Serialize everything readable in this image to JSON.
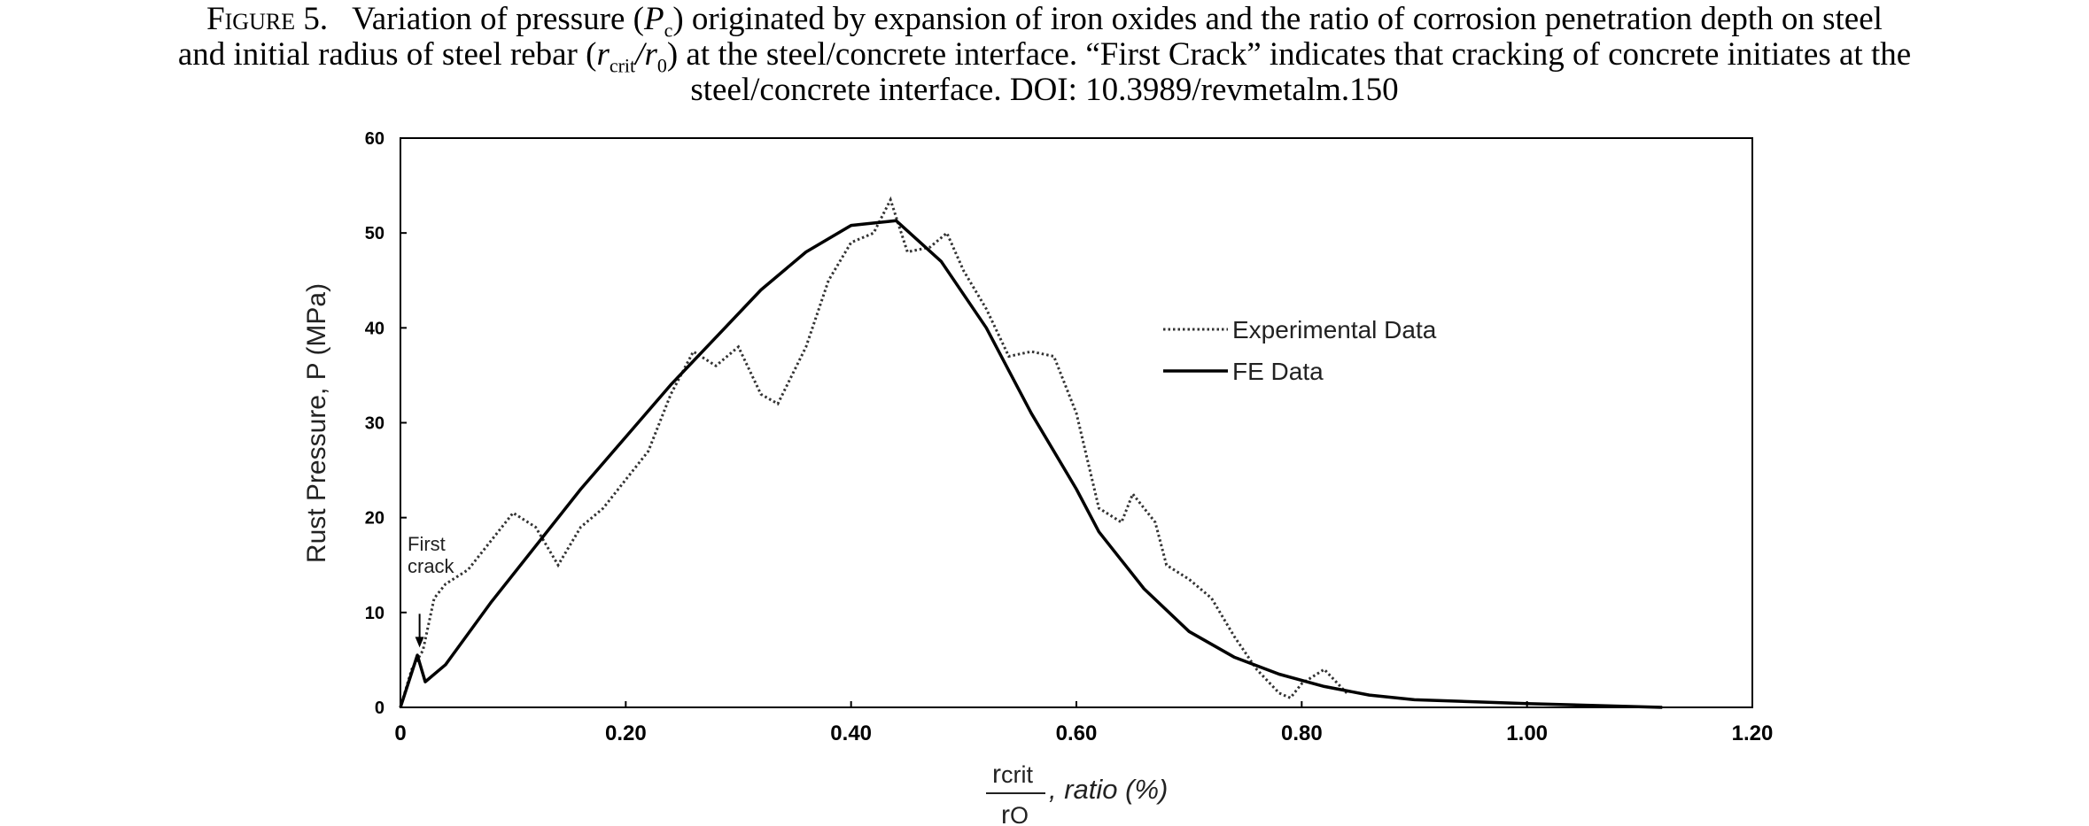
{
  "caption": {
    "label": "Figure 5.",
    "line1_a": "Variation of pressure (",
    "p_var": "P",
    "p_sub": "c",
    "line1_b": ") originated by expansion of iron oxides and the ratio of corrosion penetration depth on steel",
    "line2_a": "and initial radius of steel rebar (",
    "r_var1": "r",
    "r_sub1": "crit",
    "r_var2": "/r",
    "r_sub2": "0",
    "line2_b": ") at the steel/concrete interface. “First Crack” indicates that cracking of concrete initiates at the",
    "line3": "steel/concrete interface. DOI: 10.3989/revmetalm.150"
  },
  "chart_data": {
    "type": "line",
    "ylabel": "Rust Pressure, P (MPa)",
    "xlabel_num": "r",
    "xlabel_num_sub": "crit",
    "xlabel_den": "r",
    "xlabel_den_sub": "O",
    "xlabel_suffix": ", ratio (%)",
    "xlim": [
      0,
      1.2
    ],
    "ylim": [
      0,
      60
    ],
    "x_ticks": [
      0,
      0.2,
      0.4,
      0.6,
      0.8,
      1.0,
      1.2
    ],
    "x_tick_labels": [
      "0",
      "0.20",
      "0.40",
      "0.60",
      "0.80",
      "1.00",
      "1.20"
    ],
    "y_ticks": [
      0,
      10,
      20,
      30,
      40,
      50,
      60
    ],
    "y_tick_labels": [
      "0",
      "10",
      "20",
      "30",
      "40",
      "50",
      "60"
    ],
    "grid": false,
    "legend_position": "right",
    "annotation": {
      "line1": "First",
      "line2": "crack",
      "x": 0.017,
      "y": 6.5
    },
    "series": [
      {
        "name": "Experimental Data",
        "style": "dotted",
        "color": "#333333",
        "points": [
          [
            0,
            0
          ],
          [
            0.01,
            4
          ],
          [
            0.02,
            6
          ],
          [
            0.03,
            11.5
          ],
          [
            0.04,
            13
          ],
          [
            0.06,
            14.5
          ],
          [
            0.08,
            17.5
          ],
          [
            0.1,
            20.5
          ],
          [
            0.12,
            19
          ],
          [
            0.14,
            15
          ],
          [
            0.16,
            19
          ],
          [
            0.18,
            21
          ],
          [
            0.2,
            24
          ],
          [
            0.22,
            27
          ],
          [
            0.24,
            33
          ],
          [
            0.26,
            37.5
          ],
          [
            0.28,
            36
          ],
          [
            0.3,
            38
          ],
          [
            0.32,
            33
          ],
          [
            0.335,
            32
          ],
          [
            0.36,
            38
          ],
          [
            0.38,
            45
          ],
          [
            0.4,
            49
          ],
          [
            0.42,
            50
          ],
          [
            0.435,
            53.5
          ],
          [
            0.45,
            48
          ],
          [
            0.47,
            48.5
          ],
          [
            0.485,
            50
          ],
          [
            0.5,
            46
          ],
          [
            0.52,
            42
          ],
          [
            0.54,
            37
          ],
          [
            0.56,
            37.5
          ],
          [
            0.58,
            37
          ],
          [
            0.6,
            31
          ],
          [
            0.62,
            21
          ],
          [
            0.64,
            19.5
          ],
          [
            0.65,
            22.5
          ],
          [
            0.67,
            19.5
          ],
          [
            0.68,
            15
          ],
          [
            0.7,
            13.5
          ],
          [
            0.72,
            11.5
          ],
          [
            0.74,
            7.5
          ],
          [
            0.76,
            4
          ],
          [
            0.78,
            1.5
          ],
          [
            0.79,
            1
          ],
          [
            0.8,
            2.5
          ],
          [
            0.82,
            4
          ],
          [
            0.84,
            1.5
          ]
        ]
      },
      {
        "name": "FE Data",
        "style": "solid",
        "color": "#000000",
        "points": [
          [
            0,
            0
          ],
          [
            0.015,
            5.5
          ],
          [
            0.022,
            2.7
          ],
          [
            0.04,
            4.5
          ],
          [
            0.08,
            11
          ],
          [
            0.12,
            17
          ],
          [
            0.16,
            23
          ],
          [
            0.2,
            28.5
          ],
          [
            0.24,
            34
          ],
          [
            0.28,
            39
          ],
          [
            0.32,
            44
          ],
          [
            0.36,
            48
          ],
          [
            0.4,
            50.8
          ],
          [
            0.44,
            51.3
          ],
          [
            0.48,
            47
          ],
          [
            0.52,
            40
          ],
          [
            0.56,
            31
          ],
          [
            0.6,
            23
          ],
          [
            0.62,
            18.5
          ],
          [
            0.64,
            15.5
          ],
          [
            0.66,
            12.5
          ],
          [
            0.7,
            8
          ],
          [
            0.74,
            5.3
          ],
          [
            0.78,
            3.5
          ],
          [
            0.82,
            2.2
          ],
          [
            0.86,
            1.3
          ],
          [
            0.9,
            0.8
          ],
          [
            1.0,
            0.4
          ],
          [
            1.12,
            0
          ]
        ]
      }
    ]
  }
}
